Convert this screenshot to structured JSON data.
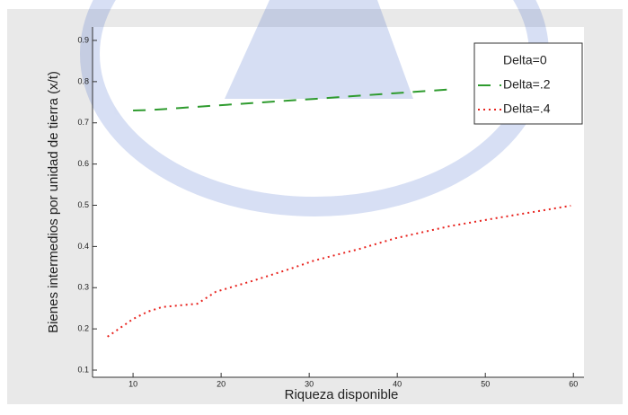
{
  "chart_data": {
    "type": "line",
    "x_label": "Riqueza disponible",
    "y_label": "Bienes intermedios por unidad de tierra (x/t)",
    "x": [
      7.1,
      10,
      11.7,
      13.3,
      15.3,
      17.3,
      19.4,
      23.5,
      27.6,
      30.6,
      35.7,
      39.8,
      45.9,
      51,
      56.1,
      59.7
    ],
    "series": [
      {
        "name": "Delta=0",
        "color": "#ffffff",
        "dash": "solid",
        "values": [
          null,
          null,
          null,
          null,
          null,
          null,
          null,
          null,
          null,
          null,
          null,
          null,
          null,
          null,
          null,
          null
        ]
      },
      {
        "name": "Delta=.2",
        "color": "#2e9b2e",
        "dash": "dashed",
        "values": [
          null,
          0.73,
          0.731,
          0.733,
          0.736,
          0.739,
          0.742,
          0.748,
          0.754,
          0.758,
          0.766,
          0.772,
          0.781,
          null,
          null,
          null
        ]
      },
      {
        "name": "Delta=.4",
        "color": "#e8231e",
        "dash": "dotted",
        "values": [
          0.181,
          0.224,
          0.242,
          0.253,
          0.257,
          0.261,
          0.29,
          0.316,
          0.344,
          0.366,
          0.394,
          0.42,
          0.449,
          0.468,
          0.486,
          0.499
        ]
      }
    ],
    "xlim": [
      5.4,
      61.2
    ],
    "xticks": [
      10,
      20,
      30,
      40,
      50,
      60
    ],
    "ylim": [
      0.1,
      0.9
    ],
    "yticks": [
      0.1,
      0.2,
      0.3,
      0.4,
      0.5,
      0.6,
      0.7,
      0.8,
      0.9
    ],
    "legend": "upper right"
  }
}
